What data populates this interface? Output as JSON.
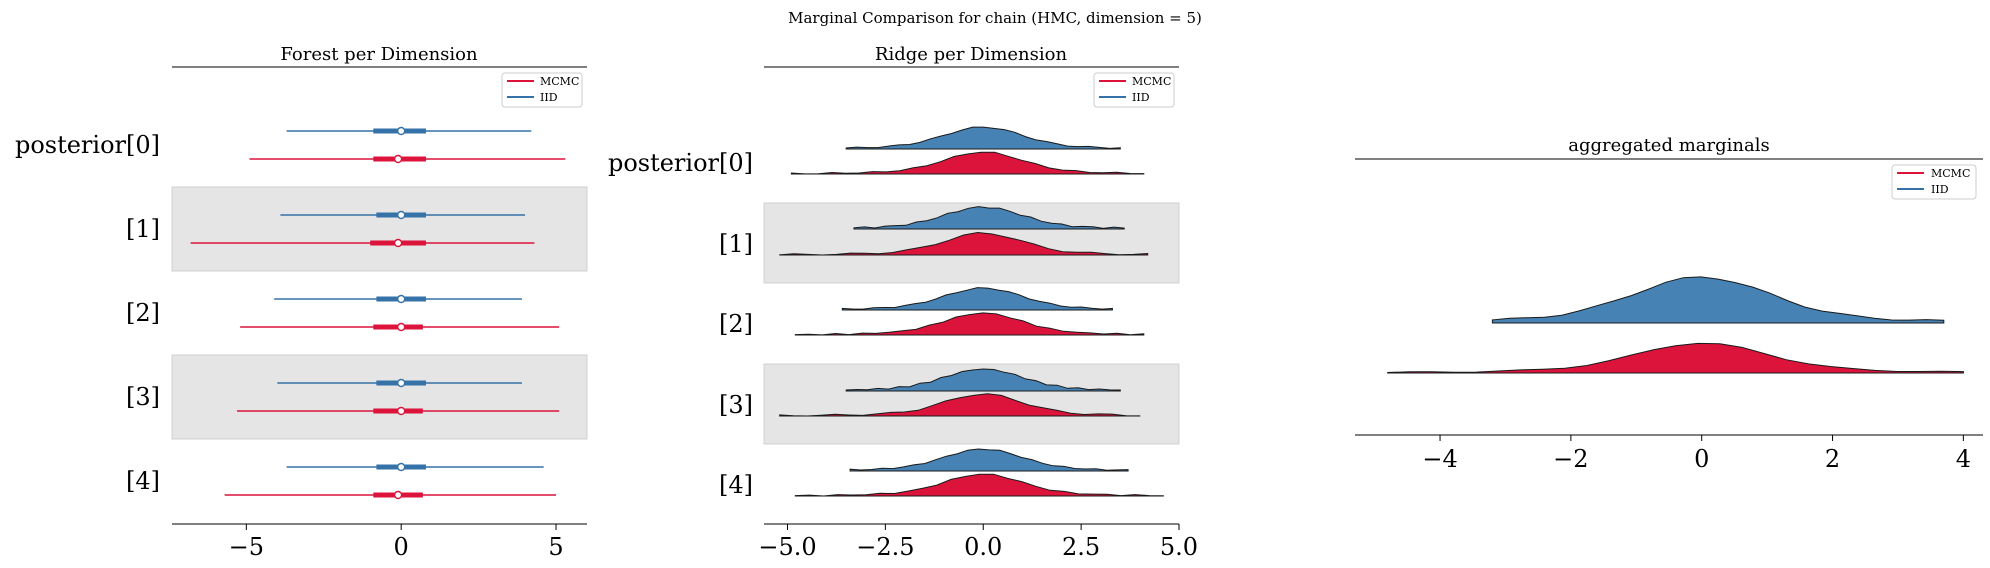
{
  "suptitle": "Marginal Comparison for chain (HMC, dimension = 5)",
  "colors": {
    "mcmc": "#dc143c",
    "iid": "#3572a8",
    "iid_fill": "#4682b4",
    "band": "#e5e5e5"
  },
  "chart_data": [
    {
      "type": "forest",
      "title": "Forest per Dimension",
      "legend": {
        "placement": "upper right",
        "entries": [
          "MCMC",
          "IID"
        ]
      },
      "xlim": [
        -7.4,
        6.0
      ],
      "xticks": [
        -5,
        0,
        5
      ],
      "yticklabels": [
        "posterior[0]",
        "[1]",
        "[2]",
        "[3]",
        "[4]"
      ],
      "series": [
        {
          "name": "MCMC",
          "hdi94": [
            [
              -4.9,
              5.3
            ],
            [
              -6.8,
              4.3
            ],
            [
              -5.2,
              5.1
            ],
            [
              -5.3,
              5.1
            ],
            [
              -5.7,
              5.0
            ]
          ],
          "iqr": [
            [
              -0.9,
              0.8
            ],
            [
              -1.0,
              0.8
            ],
            [
              -0.9,
              0.7
            ],
            [
              -0.9,
              0.7
            ],
            [
              -0.9,
              0.7
            ]
          ],
          "median": [
            -0.1,
            -0.1,
            0.0,
            0.0,
            -0.1
          ]
        },
        {
          "name": "IID",
          "hdi94": [
            [
              -3.7,
              4.2
            ],
            [
              -3.9,
              4.0
            ],
            [
              -4.1,
              3.9
            ],
            [
              -4.0,
              3.9
            ],
            [
              -3.7,
              4.6
            ]
          ],
          "iqr": [
            [
              -0.9,
              0.8
            ],
            [
              -0.8,
              0.8
            ],
            [
              -0.8,
              0.8
            ],
            [
              -0.8,
              0.8
            ],
            [
              -0.8,
              0.8
            ]
          ],
          "median": [
            0.0,
            0.0,
            0.0,
            0.0,
            0.0
          ]
        }
      ]
    },
    {
      "type": "ridgeplot",
      "title": "Ridge per Dimension",
      "legend": {
        "placement": "upper right",
        "entries": [
          "MCMC",
          "IID"
        ]
      },
      "xlim": [
        -5.6,
        5.0
      ],
      "xticks": [
        -5.0,
        -2.5,
        0.0,
        2.5,
        5.0
      ],
      "xticklabels": [
        "−5.0",
        "−2.5",
        "0.0",
        "2.5",
        "5.0"
      ],
      "yticklabels": [
        "posterior[0]",
        "[1]",
        "[2]",
        "[3]",
        "[4]"
      ],
      "series": [
        {
          "name": "IID",
          "range": [
            [
              -3.5,
              3.5
            ],
            [
              -3.3,
              3.6
            ],
            [
              -3.6,
              3.3
            ],
            [
              -3.5,
              3.5
            ],
            [
              -3.4,
              3.7
            ]
          ]
        },
        {
          "name": "MCMC",
          "range": [
            [
              -4.9,
              4.1
            ],
            [
              -5.2,
              4.2
            ],
            [
              -4.8,
              4.1
            ],
            [
              -5.2,
              4.0
            ],
            [
              -4.8,
              4.6
            ]
          ]
        }
      ]
    },
    {
      "type": "ridgeplot",
      "title": "aggregated marginals",
      "legend": {
        "placement": "upper right",
        "entries": [
          "MCMC",
          "IID"
        ]
      },
      "xlim": [
        -5.3,
        4.3
      ],
      "xticks": [
        -4,
        -2,
        0,
        2,
        4
      ],
      "xticklabels": [
        "−4",
        "−2",
        "0",
        "2",
        "4"
      ],
      "series": [
        {
          "name": "IID",
          "range": [
            -3.2,
            3.7
          ]
        },
        {
          "name": "MCMC",
          "range": [
            -4.8,
            4.0
          ]
        }
      ]
    }
  ]
}
